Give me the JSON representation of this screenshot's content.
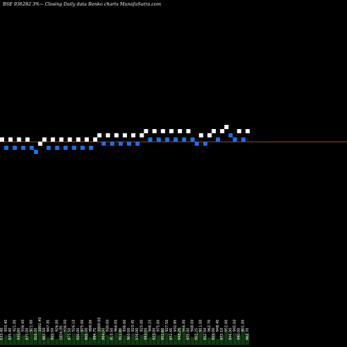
{
  "title": "BSE 936282  3%~  Closing Daily data  Renko  charts MunafaSutra.com",
  "colors": {
    "background": "#000000",
    "up_brick": "#ffffff",
    "down_brick": "#1e6fe8",
    "reference_line": "#8b4513",
    "volume": "#0f3a0f",
    "text": "#ffffff"
  },
  "chart_data": {
    "type": "renko",
    "brick_size_percent": 3,
    "bricks": [
      {
        "level": 0,
        "dir": "up"
      },
      {
        "level": -1,
        "dir": "down"
      },
      {
        "level": 0,
        "dir": "up"
      },
      {
        "level": -1,
        "dir": "down"
      },
      {
        "level": 0,
        "dir": "up"
      },
      {
        "level": -1,
        "dir": "down"
      },
      {
        "level": 0,
        "dir": "up"
      },
      {
        "level": -1,
        "dir": "down"
      },
      {
        "level": -2,
        "dir": "down"
      },
      {
        "level": -1,
        "dir": "up"
      },
      {
        "level": 0,
        "dir": "up"
      },
      {
        "level": -1,
        "dir": "down"
      },
      {
        "level": 0,
        "dir": "up"
      },
      {
        "level": -1,
        "dir": "down"
      },
      {
        "level": 0,
        "dir": "up"
      },
      {
        "level": -1,
        "dir": "down"
      },
      {
        "level": 0,
        "dir": "up"
      },
      {
        "level": -1,
        "dir": "down"
      },
      {
        "level": 0,
        "dir": "up"
      },
      {
        "level": -1,
        "dir": "down"
      },
      {
        "level": 0,
        "dir": "up"
      },
      {
        "level": -1,
        "dir": "down"
      },
      {
        "level": 0,
        "dir": "up"
      },
      {
        "level": 1,
        "dir": "up"
      },
      {
        "level": 0,
        "dir": "down"
      },
      {
        "level": 1,
        "dir": "up"
      },
      {
        "level": 0,
        "dir": "down"
      },
      {
        "level": 1,
        "dir": "up"
      },
      {
        "level": 0,
        "dir": "down"
      },
      {
        "level": 1,
        "dir": "up"
      },
      {
        "level": 0,
        "dir": "down"
      },
      {
        "level": 1,
        "dir": "up"
      },
      {
        "level": 0,
        "dir": "down"
      },
      {
        "level": 1,
        "dir": "up"
      },
      {
        "level": 2,
        "dir": "up"
      },
      {
        "level": 1,
        "dir": "down"
      },
      {
        "level": 2,
        "dir": "up"
      },
      {
        "level": 1,
        "dir": "down"
      },
      {
        "level": 2,
        "dir": "up"
      },
      {
        "level": 1,
        "dir": "down"
      },
      {
        "level": 2,
        "dir": "up"
      },
      {
        "level": 1,
        "dir": "down"
      },
      {
        "level": 2,
        "dir": "up"
      },
      {
        "level": 1,
        "dir": "down"
      },
      {
        "level": 2,
        "dir": "up"
      },
      {
        "level": 1,
        "dir": "down"
      },
      {
        "level": 0,
        "dir": "down"
      },
      {
        "level": 1,
        "dir": "up"
      },
      {
        "level": 0,
        "dir": "down"
      },
      {
        "level": 1,
        "dir": "up"
      },
      {
        "level": 2,
        "dir": "up"
      },
      {
        "level": 1,
        "dir": "down"
      },
      {
        "level": 2,
        "dir": "up"
      },
      {
        "level": 3,
        "dir": "up"
      },
      {
        "level": 2,
        "dir": "down"
      },
      {
        "level": 1,
        "dir": "down"
      },
      {
        "level": 2,
        "dir": "up"
      },
      {
        "level": 1,
        "dir": "down"
      },
      {
        "level": 2,
        "dir": "up"
      }
    ],
    "date_labels": [
      "933.40",
      "933.40",
      "935.40",
      "921.00",
      "935.00",
      "936.40",
      "935.00",
      "921.00",
      "916.00",
      "1002.40",
      "963.50",
      "947.35",
      "921.50",
      "926.00",
      "1016.00",
      "936.00",
      "975.50",
      "926.10",
      "926.00",
      "975.00",
      "905.00",
      "999.00",
      "994.75",
      "1000.00",
      "984.00",
      "930.00",
      "910.50",
      "966.00",
      "911.00",
      "936.00",
      "960.00",
      "923.45",
      "926.00",
      "925.00",
      "993.00",
      "946.25",
      "923.00",
      "975.00",
      "951.60",
      "927.50",
      "932.45",
      "932.95",
      "948.25",
      "966.00",
      "975.00",
      "948.00",
      "951.25",
      "911.00",
      "912.50",
      "962.70",
      "921.00",
      "948.40",
      "973.10",
      "952.00",
      "946.00",
      "945.00",
      "990.00",
      "901.00",
      "962.70"
    ],
    "volume": [
      0.3,
      0.5,
      0.4,
      0.6,
      0.7,
      0.5,
      0.4,
      0.8,
      0.6,
      0.9,
      0.5,
      0.4,
      0.6,
      0.3,
      0.5,
      0.7,
      0.4,
      0.6,
      0.5,
      0.8,
      0.6,
      0.4,
      0.5,
      0.9,
      0.7,
      0.5,
      0.4,
      0.6,
      0.8,
      0.5,
      0.4,
      0.6,
      0.3,
      0.5,
      0.7,
      0.4,
      0.6,
      0.5,
      0.8,
      0.6,
      0.4,
      0.5,
      0.9,
      0.7,
      0.5,
      0.4,
      0.6,
      0.8,
      0.5,
      0.4,
      0.6,
      0.3,
      0.5,
      0.7,
      0.4,
      0.6,
      0.5,
      0.8,
      0.6
    ]
  }
}
